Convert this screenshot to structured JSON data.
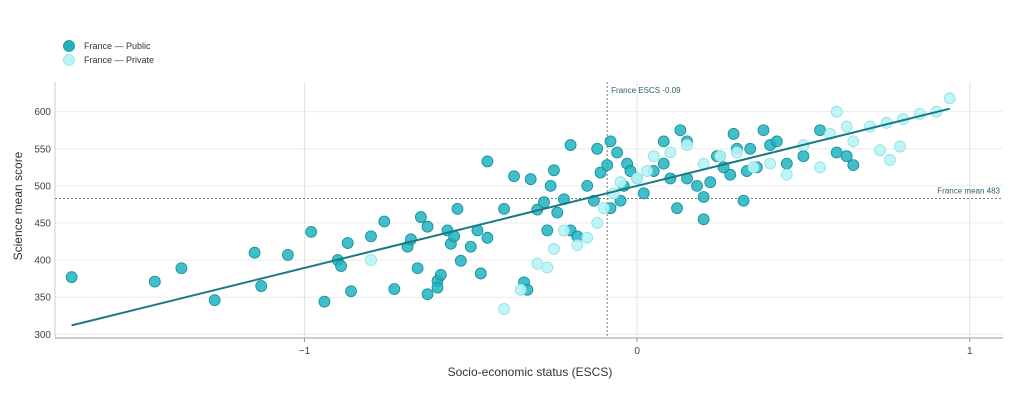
{
  "chart_data": {
    "type": "scatter",
    "xlabel": "Socio-economic status (ESCS)",
    "ylabel": "Science mean score",
    "xlim": [
      -1.75,
      1.1
    ],
    "ylim": [
      295,
      640
    ],
    "x_ticks": [
      {
        "value": -1,
        "label": "−1"
      },
      {
        "value": 0,
        "label": "0"
      },
      {
        "value": 1,
        "label": "1"
      }
    ],
    "y_ticks": [
      300,
      350,
      400,
      450,
      500,
      550,
      600
    ],
    "grid": true,
    "legend_position": "top-left",
    "reference_lines": [
      {
        "orientation": "vertical",
        "value": -0.09,
        "label": "France ESCS -0.09"
      },
      {
        "orientation": "horizontal",
        "value": 483,
        "label": "France mean 483"
      }
    ],
    "regression_line": {
      "x": [
        -1.7,
        0.94
      ],
      "y": [
        312,
        604
      ],
      "color": "#1a7a84"
    },
    "series": [
      {
        "name": "France — Public",
        "color": "#1fb3bf",
        "stroke": "#168c96",
        "points": [
          [
            -1.7,
            377
          ],
          [
            -1.45,
            371
          ],
          [
            -1.37,
            389
          ],
          [
            -1.27,
            346
          ],
          [
            -1.15,
            410
          ],
          [
            -1.13,
            365
          ],
          [
            -1.05,
            407
          ],
          [
            -0.98,
            438
          ],
          [
            -0.94,
            344
          ],
          [
            -0.9,
            400
          ],
          [
            -0.89,
            392
          ],
          [
            -0.87,
            423
          ],
          [
            -0.86,
            358
          ],
          [
            -0.8,
            432
          ],
          [
            -0.76,
            452
          ],
          [
            -0.73,
            361
          ],
          [
            -0.69,
            418
          ],
          [
            -0.68,
            428
          ],
          [
            -0.66,
            389
          ],
          [
            -0.65,
            458
          ],
          [
            -0.63,
            445
          ],
          [
            -0.63,
            354
          ],
          [
            -0.6,
            372
          ],
          [
            -0.6,
            363
          ],
          [
            -0.59,
            380
          ],
          [
            -0.57,
            440
          ],
          [
            -0.56,
            422
          ],
          [
            -0.55,
            432
          ],
          [
            -0.54,
            469
          ],
          [
            -0.53,
            399
          ],
          [
            -0.5,
            418
          ],
          [
            -0.48,
            440
          ],
          [
            -0.47,
            382
          ],
          [
            -0.45,
            430
          ],
          [
            -0.45,
            533
          ],
          [
            -0.4,
            469
          ],
          [
            -0.37,
            513
          ],
          [
            -0.34,
            370
          ],
          [
            -0.32,
            509
          ],
          [
            -0.33,
            360
          ],
          [
            -0.3,
            468
          ],
          [
            -0.28,
            478
          ],
          [
            -0.27,
            440
          ],
          [
            -0.26,
            500
          ],
          [
            -0.25,
            521
          ],
          [
            -0.24,
            464
          ],
          [
            -0.22,
            482
          ],
          [
            -0.2,
            440
          ],
          [
            -0.18,
            432
          ],
          [
            -0.15,
            500
          ],
          [
            -0.13,
            480
          ],
          [
            -0.11,
            518
          ],
          [
            -0.09,
            528
          ],
          [
            -0.08,
            470
          ],
          [
            -0.06,
            545
          ],
          [
            -0.05,
            480
          ],
          [
            -0.04,
            500
          ],
          [
            -0.03,
            530
          ],
          [
            -0.02,
            520
          ],
          [
            0.0,
            510
          ],
          [
            0.02,
            490
          ],
          [
            0.05,
            520
          ],
          [
            0.08,
            560
          ],
          [
            0.1,
            510
          ],
          [
            0.13,
            575
          ],
          [
            0.15,
            560
          ],
          [
            0.18,
            500
          ],
          [
            0.2,
            485
          ],
          [
            0.22,
            505
          ],
          [
            0.25,
            540
          ],
          [
            0.28,
            515
          ],
          [
            0.3,
            550
          ],
          [
            0.33,
            520
          ],
          [
            0.36,
            525
          ],
          [
            0.38,
            575
          ],
          [
            0.4,
            555
          ],
          [
            0.42,
            560
          ],
          [
            0.45,
            530
          ],
          [
            0.5,
            540
          ],
          [
            0.55,
            575
          ],
          [
            0.6,
            545
          ],
          [
            0.63,
            540
          ],
          [
            0.65,
            528
          ],
          [
            0.32,
            480
          ],
          [
            0.12,
            470
          ],
          [
            0.2,
            455
          ],
          [
            0.08,
            530
          ],
          [
            0.15,
            510
          ],
          [
            0.26,
            525
          ],
          [
            0.24,
            540
          ],
          [
            0.34,
            550
          ],
          [
            0.29,
            570
          ],
          [
            -0.12,
            550
          ],
          [
            -0.2,
            555
          ],
          [
            -0.08,
            560
          ]
        ]
      },
      {
        "name": "France — Private",
        "color": "#b8f4f5",
        "stroke": "#8ee0e3",
        "points": [
          [
            -0.8,
            400
          ],
          [
            -0.4,
            334
          ],
          [
            -0.35,
            360
          ],
          [
            -0.3,
            395
          ],
          [
            -0.27,
            390
          ],
          [
            -0.25,
            415
          ],
          [
            -0.22,
            440
          ],
          [
            -0.18,
            420
          ],
          [
            -0.15,
            430
          ],
          [
            -0.12,
            450
          ],
          [
            -0.1,
            470
          ],
          [
            -0.07,
            490
          ],
          [
            -0.05,
            505
          ],
          [
            0.0,
            510
          ],
          [
            0.03,
            520
          ],
          [
            0.05,
            540
          ],
          [
            0.1,
            545
          ],
          [
            0.15,
            555
          ],
          [
            0.2,
            530
          ],
          [
            0.25,
            540
          ],
          [
            0.3,
            545
          ],
          [
            0.35,
            525
          ],
          [
            0.4,
            530
          ],
          [
            0.45,
            515
          ],
          [
            0.5,
            555
          ],
          [
            0.55,
            525
          ],
          [
            0.6,
            600
          ],
          [
            0.63,
            580
          ],
          [
            0.65,
            560
          ],
          [
            0.7,
            580
          ],
          [
            0.75,
            585
          ],
          [
            0.8,
            590
          ],
          [
            0.85,
            597
          ],
          [
            0.9,
            600
          ],
          [
            0.94,
            618
          ],
          [
            0.73,
            548
          ],
          [
            0.76,
            535
          ],
          [
            0.79,
            553
          ],
          [
            0.58,
            570
          ]
        ]
      }
    ]
  }
}
